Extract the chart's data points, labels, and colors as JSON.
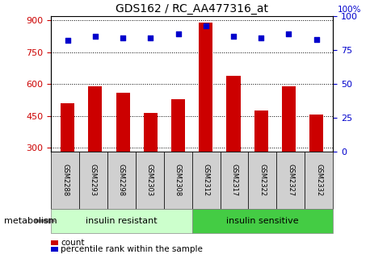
{
  "title": "GDS162 / RC_AA477316_at",
  "samples": [
    "GSM2288",
    "GSM2293",
    "GSM2298",
    "GSM2303",
    "GSM2308",
    "GSM2312",
    "GSM2317",
    "GSM2322",
    "GSM2327",
    "GSM2332"
  ],
  "counts": [
    510,
    590,
    560,
    465,
    530,
    890,
    640,
    475,
    590,
    455
  ],
  "percentile_ranks": [
    82,
    85,
    84,
    84,
    87,
    93,
    85,
    84,
    87,
    83
  ],
  "groups": [
    "insulin resistant",
    "insulin resistant",
    "insulin resistant",
    "insulin resistant",
    "insulin resistant",
    "insulin sensitive",
    "insulin sensitive",
    "insulin sensitive",
    "insulin sensitive",
    "insulin sensitive"
  ],
  "bar_color": "#cc0000",
  "dot_color": "#0000cc",
  "ylim_left": [
    280,
    920
  ],
  "ylim_right": [
    0,
    100
  ],
  "yticks_left": [
    300,
    450,
    600,
    750,
    900
  ],
  "yticks_right": [
    0,
    25,
    50,
    75,
    100
  ],
  "plot_bg": "#ffffff",
  "sample_box_bg": "#d0d0d0",
  "group_colors": {
    "insulin resistant": "#ccffcc",
    "insulin sensitive": "#44cc44"
  },
  "legend_items": [
    "count",
    "percentile rank within the sample"
  ],
  "metabolism_label": "metabolism"
}
